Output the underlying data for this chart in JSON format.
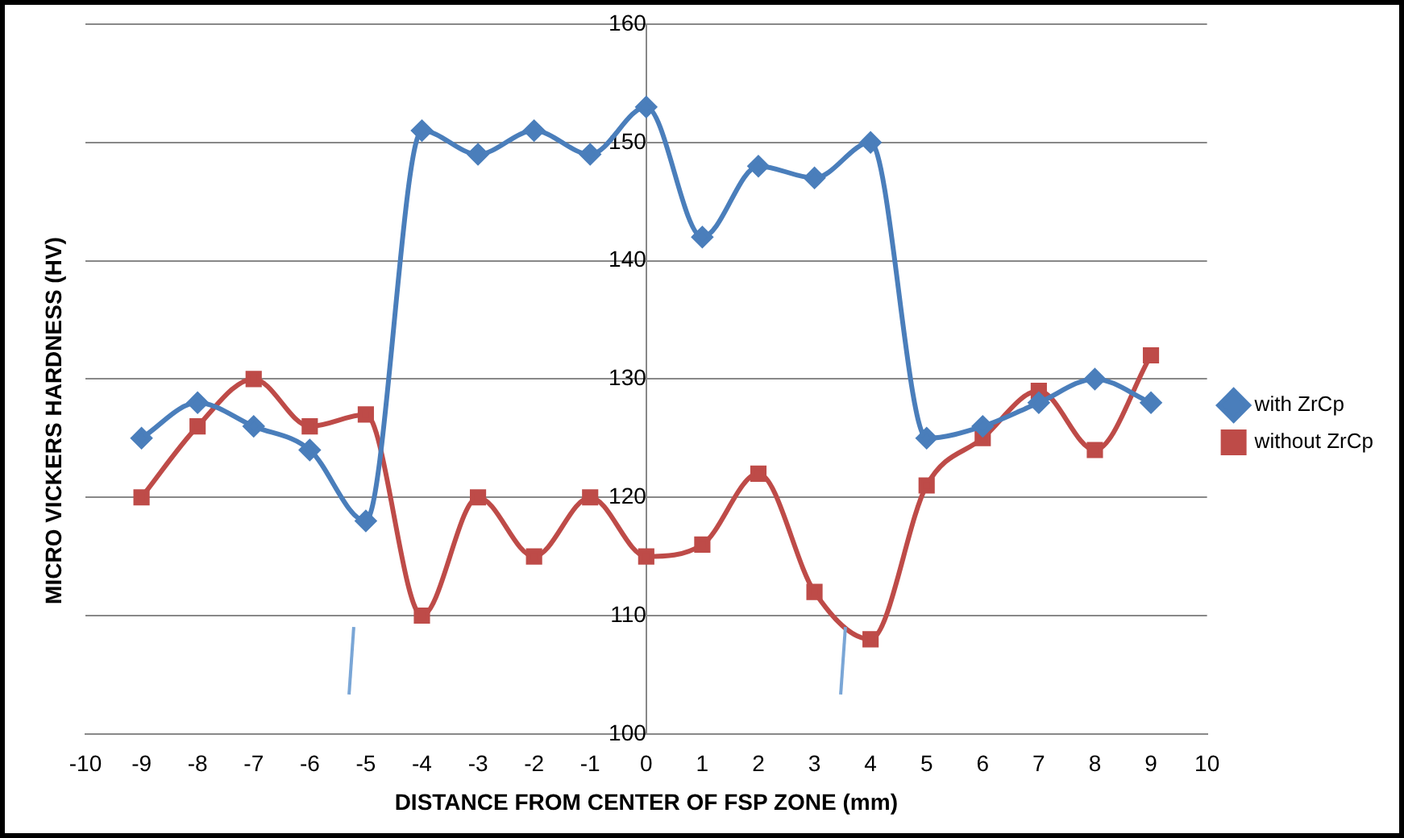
{
  "chart_data": {
    "type": "line",
    "xlabel": "DISTANCE FROM CENTER OF FSP ZONE (mm)",
    "ylabel": "MICRO VICKERS HARDNESS (HV)",
    "x": [
      -9,
      -8,
      -7,
      -6,
      -5,
      -4,
      -3,
      -2,
      -1,
      0,
      1,
      2,
      3,
      4,
      5,
      6,
      7,
      8,
      9
    ],
    "xlim": [
      -10,
      10
    ],
    "xticks": [
      -10,
      -9,
      -8,
      -7,
      -6,
      -5,
      -4,
      -3,
      -2,
      -1,
      0,
      1,
      2,
      3,
      4,
      5,
      6,
      7,
      8,
      9,
      10
    ],
    "ylim": [
      100,
      160
    ],
    "yticks": [
      100,
      110,
      120,
      130,
      140,
      150,
      160
    ],
    "grid": "y",
    "legend": "right",
    "series": [
      {
        "name": "with ZrCp",
        "color": "#4a7ebb",
        "marker": "diamond",
        "values": [
          125,
          128,
          126,
          124,
          118,
          151,
          149,
          151,
          149,
          153,
          142,
          148,
          147,
          150,
          125,
          126,
          128,
          130,
          128
        ]
      },
      {
        "name": "without ZrCp",
        "color": "#be4b48",
        "marker": "square",
        "values": [
          120,
          126,
          130,
          126,
          127,
          110,
          120,
          115,
          120,
          115,
          116,
          122,
          112,
          108,
          121,
          125,
          129,
          124,
          132
        ]
      }
    ]
  }
}
